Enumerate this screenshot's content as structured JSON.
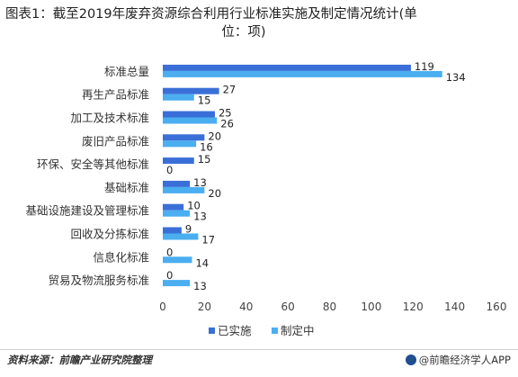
{
  "title": {
    "line1": "图表1：截至2019年废弃资源综合利用行业标准实施及制定情况统计(单",
    "line2": "位：项)"
  },
  "footer": {
    "source": "资料来源：前瞻产业研究院整理",
    "brand": "@前瞻经济学人APP"
  },
  "colors": {
    "implemented": "#3a6fd8",
    "drafting": "#4aaef0"
  },
  "chart_data": {
    "type": "bar",
    "orientation": "horizontal",
    "categories": [
      "标准总量",
      "再生产品标准",
      "加工及技术标准",
      "废旧产品标准",
      "环保、安全等其他标准",
      "基础标准",
      "基础设施建设及管理标准",
      "回收及分拣标准",
      "信息化标准",
      "贸易及物流服务标准"
    ],
    "series": [
      {
        "name": "已实施",
        "values": [
          119,
          27,
          25,
          20,
          15,
          13,
          10,
          9,
          0,
          0
        ]
      },
      {
        "name": "制定中",
        "values": [
          134,
          15,
          26,
          16,
          0,
          20,
          13,
          17,
          14,
          13
        ]
      }
    ],
    "xlim": [
      0,
      160
    ],
    "xticks": [
      0,
      20,
      40,
      60,
      80,
      100,
      120,
      140,
      160
    ],
    "legend_position": "bottom",
    "grid": false
  }
}
